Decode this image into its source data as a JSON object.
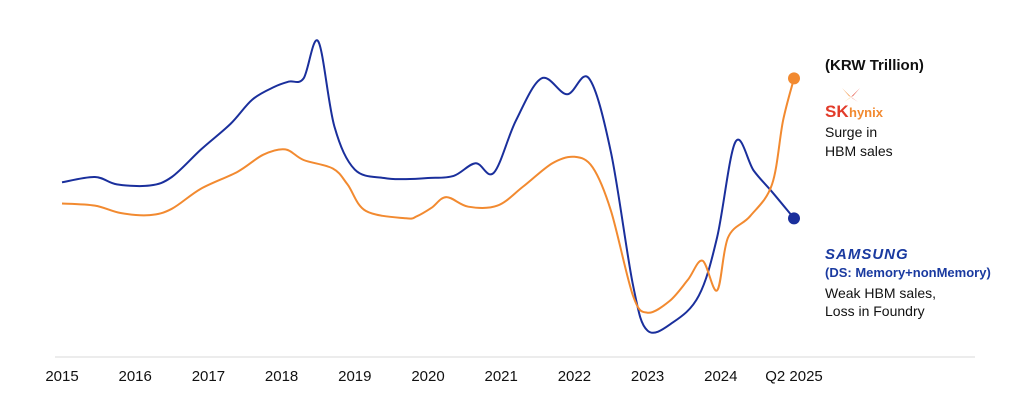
{
  "chart_data": {
    "type": "line",
    "title": "",
    "unit_label": "(KRW Trillion)",
    "xlabel": "",
    "ylabel": "",
    "grid": false,
    "x_ticks": [
      "2015",
      "2016",
      "2017",
      "2018",
      "2019",
      "2020",
      "2021",
      "2022",
      "2023",
      "2024",
      "Q2 2025"
    ],
    "series": [
      {
        "name": "SAMSUNG",
        "color": "#1a2f9c",
        "points": [
          [
            2015.0,
            0.62
          ],
          [
            2015.45,
            0.67
          ],
          [
            2015.75,
            0.6
          ],
          [
            2016.2,
            0.59
          ],
          [
            2016.5,
            0.67
          ],
          [
            2016.9,
            0.93
          ],
          [
            2017.3,
            1.17
          ],
          [
            2017.6,
            1.4
          ],
          [
            2017.9,
            1.52
          ],
          [
            2018.1,
            1.57
          ],
          [
            2018.3,
            1.6
          ],
          [
            2018.5,
            1.95
          ],
          [
            2018.72,
            1.15
          ],
          [
            2019.0,
            0.74
          ],
          [
            2019.4,
            0.66
          ],
          [
            2019.7,
            0.65
          ],
          [
            2020.0,
            0.66
          ],
          [
            2020.35,
            0.68
          ],
          [
            2020.65,
            0.8
          ],
          [
            2020.9,
            0.71
          ],
          [
            2021.2,
            1.2
          ],
          [
            2021.55,
            1.6
          ],
          [
            2021.9,
            1.45
          ],
          [
            2022.2,
            1.6
          ],
          [
            2022.5,
            0.9
          ],
          [
            2022.8,
            -0.35
          ],
          [
            2023.0,
            -0.78
          ],
          [
            2023.35,
            -0.7
          ],
          [
            2023.7,
            -0.45
          ],
          [
            2023.95,
            0.1
          ],
          [
            2024.2,
            1.0
          ],
          [
            2024.45,
            0.73
          ],
          [
            2024.7,
            0.53
          ],
          [
            2025.0,
            0.28
          ]
        ]
      },
      {
        "name": "SK hynix",
        "color": "#f28a30",
        "points": [
          [
            2015.0,
            0.42
          ],
          [
            2015.45,
            0.4
          ],
          [
            2015.8,
            0.33
          ],
          [
            2016.2,
            0.31
          ],
          [
            2016.5,
            0.37
          ],
          [
            2016.9,
            0.56
          ],
          [
            2017.4,
            0.72
          ],
          [
            2017.75,
            0.88
          ],
          [
            2018.05,
            0.93
          ],
          [
            2018.3,
            0.83
          ],
          [
            2018.7,
            0.75
          ],
          [
            2018.9,
            0.6
          ],
          [
            2019.15,
            0.35
          ],
          [
            2019.7,
            0.28
          ],
          [
            2019.85,
            0.3
          ],
          [
            2020.05,
            0.38
          ],
          [
            2020.25,
            0.48
          ],
          [
            2020.55,
            0.39
          ],
          [
            2020.95,
            0.4
          ],
          [
            2021.3,
            0.58
          ],
          [
            2021.7,
            0.8
          ],
          [
            2022.0,
            0.86
          ],
          [
            2022.25,
            0.76
          ],
          [
            2022.5,
            0.35
          ],
          [
            2022.8,
            -0.45
          ],
          [
            2023.0,
            -0.61
          ],
          [
            2023.3,
            -0.5
          ],
          [
            2023.55,
            -0.3
          ],
          [
            2023.75,
            -0.12
          ],
          [
            2023.95,
            -0.4
          ],
          [
            2024.1,
            0.1
          ],
          [
            2024.4,
            0.3
          ],
          [
            2024.7,
            0.6
          ],
          [
            2024.85,
            1.2
          ],
          [
            2025.0,
            1.6
          ]
        ]
      }
    ],
    "annotations": {
      "sk_hynix": {
        "logo_main": "SK",
        "logo_sub": "hynix",
        "note_lines": [
          "Surge in",
          "HBM sales"
        ]
      },
      "samsung": {
        "logo": "SAMSUNG",
        "sub": "(DS: Memory+nonMemory)",
        "note_lines": [
          "Weak HBM sales,",
          "Loss in Foundry"
        ]
      }
    }
  }
}
